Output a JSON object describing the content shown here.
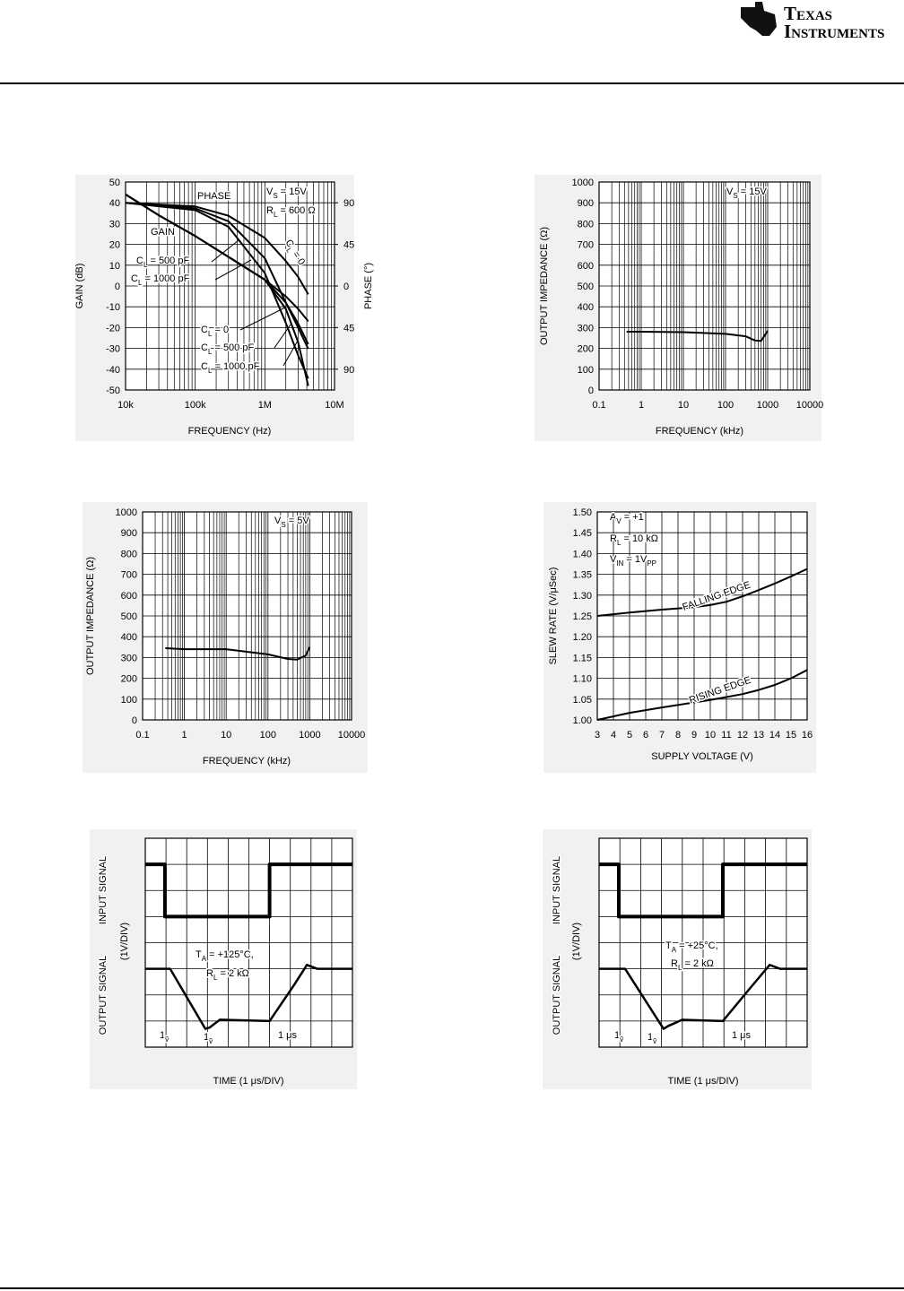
{
  "header": {
    "logo_line1": "Texas",
    "logo_line2": "Instruments"
  },
  "chart_data": [
    {
      "type": "line",
      "log_x": true,
      "grid": true,
      "xlabel": "FREQUENCY (Hz)",
      "ylabel": "GAIN (dB)",
      "y2label": "PHASE (°)",
      "xlim": [
        10000,
        10000000
      ],
      "xticks": [
        {
          "value": 10000,
          "label": "10k"
        },
        {
          "value": 100000,
          "label": "100k"
        },
        {
          "value": 1000000,
          "label": "1M"
        },
        {
          "value": 10000000,
          "label": "10M"
        }
      ],
      "ylim": [
        -50,
        50
      ],
      "yticks": [
        -50,
        -40,
        -30,
        -20,
        -10,
        0,
        10,
        20,
        30,
        40,
        50
      ],
      "y2lim": [
        -112.5,
        112.5
      ],
      "y2ticks": [
        90,
        45,
        0,
        {
          "value": -45,
          "label": "45"
        },
        {
          "value": -90,
          "label": "90"
        }
      ],
      "annotations": [
        "PHASE",
        "GAIN",
        [
          "V",
          "S",
          " = 15V"
        ],
        [
          "R",
          "L",
          " = 600 Ω"
        ],
        [
          "C",
          "L",
          " = 500 pF"
        ],
        [
          "C",
          "L",
          " = 1000 pF"
        ],
        [
          "C",
          "L",
          " = 0"
        ],
        [
          "C",
          "L",
          " = 500 pF"
        ],
        [
          "C",
          "L",
          " = 1000 pF"
        ],
        [
          "C",
          "L",
          " = 0"
        ]
      ],
      "series": [
        {
          "color": "#000000",
          "x": [
            10000,
            30000,
            100000,
            300000,
            1000000,
            2000000,
            3000000,
            4200000
          ],
          "values": [
            44,
            34,
            24,
            14,
            3,
            -5,
            -11,
            -17
          ]
        },
        {
          "color": "#000000",
          "x": [
            10000,
            30000,
            100000,
            300000,
            1000000,
            2000000,
            3000000,
            4200000
          ],
          "values": [
            44,
            34,
            24,
            14,
            3,
            -8,
            -18,
            -28
          ]
        },
        {
          "color": "#000000",
          "x": [
            10000,
            30000,
            100000,
            300000,
            1000000,
            2000000,
            3000000,
            4200000
          ],
          "values": [
            44,
            34,
            24,
            14,
            3,
            -11,
            -27,
            -48
          ]
        },
        {
          "color": "#000000",
          "axis": "y2",
          "x": [
            10000,
            100000,
            300000,
            1000000,
            2000000,
            3000000,
            4200000
          ],
          "values": [
            90,
            86,
            76,
            52,
            27,
            10,
            -9
          ]
        },
        {
          "color": "#000000",
          "axis": "y2",
          "x": [
            10000,
            100000,
            300000,
            1000000,
            2000000,
            3000000,
            4200000
          ],
          "values": [
            90,
            84,
            70,
            30,
            -18,
            -45,
            -68
          ]
        },
        {
          "color": "#000000",
          "axis": "y2",
          "x": [
            10000,
            100000,
            300000,
            1000000,
            2000000,
            3000000,
            4200000
          ],
          "values": [
            90,
            82,
            64,
            14,
            -40,
            -75,
            -100
          ]
        }
      ]
    },
    {
      "type": "line",
      "log_x": true,
      "grid": true,
      "xlabel": "FREQUENCY (kHz)",
      "ylabel": "OUTPUT IMPEDANCE (Ω)",
      "xlim": [
        0.1,
        10000
      ],
      "xticks": [
        0.1,
        1,
        10,
        100,
        1000,
        10000
      ],
      "ylim": [
        0,
        1000
      ],
      "yticks": [
        0,
        100,
        200,
        300,
        400,
        500,
        600,
        700,
        800,
        900,
        1000
      ],
      "annotations": [
        [
          "V",
          "S",
          " = 15V"
        ]
      ],
      "series": [
        {
          "color": "#000000",
          "x": [
            0.45,
            1,
            10,
            100,
            300,
            500,
            700,
            1000
          ],
          "values": [
            280,
            280,
            278,
            270,
            258,
            238,
            236,
            285
          ]
        }
      ]
    },
    {
      "type": "line",
      "log_x": true,
      "grid": true,
      "xlabel": "FREQUENCY (kHz)",
      "ylabel": "OUTPUT IMPEDANCE (Ω)",
      "xlim": [
        0.1,
        10000
      ],
      "xticks": [
        0.1,
        1,
        10,
        100,
        1000,
        10000
      ],
      "ylim": [
        0,
        1000
      ],
      "yticks": [
        0,
        100,
        200,
        300,
        400,
        500,
        600,
        700,
        800,
        900,
        1000
      ],
      "annotations": [
        [
          "V",
          "S",
          " = 5V"
        ]
      ],
      "series": [
        {
          "color": "#000000",
          "x": [
            0.35,
            1,
            10,
            100,
            300,
            500,
            800,
            1000
          ],
          "values": [
            345,
            340,
            340,
            315,
            293,
            290,
            310,
            350
          ]
        }
      ]
    },
    {
      "type": "line",
      "grid": true,
      "xlabel": "SUPPLY VOLTAGE (V)",
      "ylabel": "SLEW RATE (V/μSec)",
      "xlim": [
        3,
        16
      ],
      "xticks": [
        3,
        4,
        5,
        6,
        7,
        8,
        9,
        10,
        11,
        12,
        13,
        14,
        15,
        16
      ],
      "ylim": [
        1,
        1.5
      ],
      "yticks": [
        {
          "value": 1,
          "label": "1.00"
        },
        1.05,
        {
          "value": 1.1,
          "label": "1.10"
        },
        1.15,
        {
          "value": 1.2,
          "label": "1.20"
        },
        1.25,
        {
          "value": 1.3,
          "label": "1.30"
        },
        1.35,
        {
          "value": 1.4,
          "label": "1.40"
        },
        1.45,
        {
          "value": 1.5,
          "label": "1.50"
        }
      ],
      "annotations": [
        [
          "A",
          "V",
          " = +1"
        ],
        [
          "R",
          "L",
          " = 10 kΩ"
        ],
        [
          "V",
          "IN",
          " = 1V",
          "PP"
        ]
      ],
      "series": [
        {
          "name": "FALLING EDGE",
          "color": "#000000",
          "x": [
            3,
            5,
            7,
            9,
            10,
            11,
            12,
            13,
            14,
            15,
            16
          ],
          "values": [
            1.25,
            1.258,
            1.265,
            1.271,
            1.276,
            1.284,
            1.297,
            1.312,
            1.328,
            1.345,
            1.363
          ]
        },
        {
          "name": "RISING EDGE",
          "color": "#000000",
          "x": [
            3,
            5,
            7,
            9,
            10,
            11,
            12,
            13,
            14,
            15,
            16
          ],
          "values": [
            1,
            1.017,
            1.03,
            1.042,
            1.048,
            1.055,
            1.062,
            1.072,
            1.084,
            1.1,
            1.12
          ]
        }
      ]
    },
    {
      "type": "line",
      "grid": true,
      "xlabel": "TIME (1 μs/DIV)",
      "ylabel": "(1V/DIV)",
      "xlim": [
        0,
        10
      ],
      "ylim": [
        0,
        8
      ],
      "annotations": [
        [
          "T",
          "A",
          " = +125°C,"
        ],
        [
          "R",
          "L",
          " = 2 kΩ"
        ],
        [
          "1",
          "ṽ"
        ],
        [
          "1",
          "ṽ"
        ],
        "1 μs"
      ],
      "series": [
        {
          "name": "INPUT SIGNAL",
          "color": "#000000",
          "x": [
            0,
            0.95,
            0.95,
            6,
            6,
            10
          ],
          "values": [
            7,
            7,
            5,
            5,
            7,
            7
          ]
        },
        {
          "name": "OUTPUT SIGNAL",
          "color": "#000000",
          "x": [
            0,
            1.2,
            2.9,
            3.1,
            3.6,
            6,
            7.2,
            7.8,
            8.3,
            10
          ],
          "values": [
            3,
            3,
            0.7,
            0.75,
            1.05,
            1,
            2.4,
            3.15,
            3,
            3
          ]
        }
      ]
    },
    {
      "type": "line",
      "grid": true,
      "xlabel": "TIME (1 μs/DIV)",
      "ylabel": "(1V/DIV)",
      "xlim": [
        0,
        10
      ],
      "ylim": [
        0,
        8
      ],
      "annotations": [
        [
          "T",
          "A",
          " = +25°C,"
        ],
        [
          "R",
          "L",
          " = 2 kΩ"
        ],
        [
          "1",
          "ṽ"
        ],
        [
          "1",
          "ṽ"
        ],
        "1 μs"
      ],
      "series": [
        {
          "name": "INPUT SIGNAL",
          "color": "#000000",
          "x": [
            0,
            0.95,
            0.95,
            5.95,
            5.95,
            10
          ],
          "values": [
            7,
            7,
            5,
            5,
            7,
            7
          ]
        },
        {
          "name": "OUTPUT SIGNAL",
          "color": "#000000",
          "x": [
            0,
            1.25,
            3.1,
            3.3,
            4,
            5.95,
            7.3,
            8.2,
            8.7,
            10
          ],
          "values": [
            3,
            3,
            0.7,
            0.8,
            1.05,
            1,
            2.3,
            3.15,
            3,
            3
          ]
        }
      ]
    }
  ]
}
